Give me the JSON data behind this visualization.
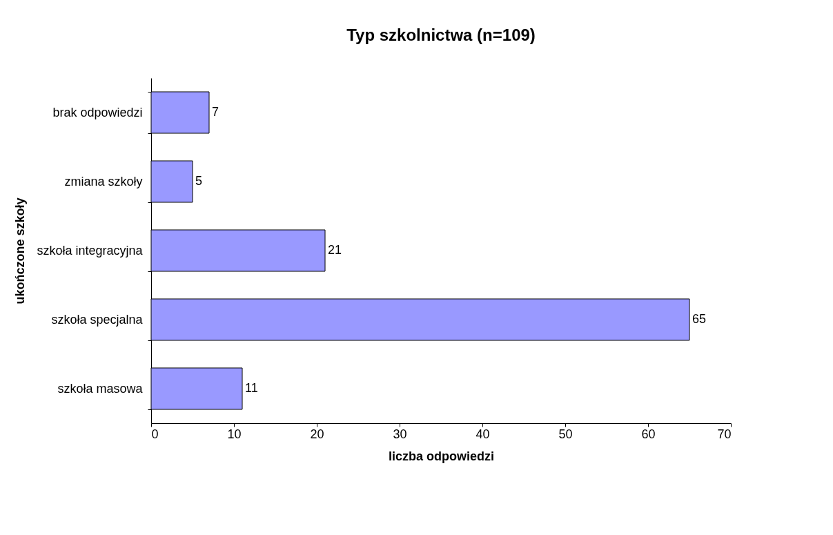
{
  "chart_data": {
    "type": "bar",
    "orientation": "horizontal",
    "title": "Typ szkolnictwa (n=109)",
    "xlabel": "liczba odpowiedzi",
    "ylabel": "ukończone szkoły",
    "categories": [
      "brak odpowiedzi",
      "zmiana szkoły",
      "szkoła integracyjna",
      "szkoła specjalna",
      "szkoła masowa"
    ],
    "values": [
      7,
      5,
      21,
      65,
      11
    ],
    "color": "#9999ff",
    "xlim": [
      0,
      70
    ],
    "xticks": [
      0,
      10,
      20,
      30,
      40,
      50,
      60,
      70
    ],
    "grid": false,
    "data_labels": true
  }
}
